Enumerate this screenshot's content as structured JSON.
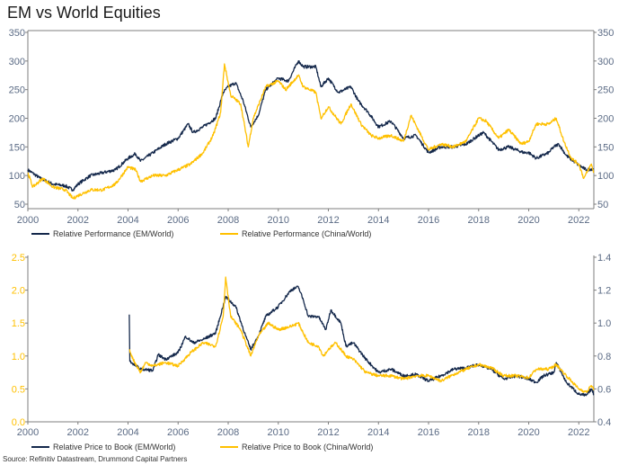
{
  "title": "EM vs World Equities",
  "source": "Source: Refinitiv Datastream, Drummond Capital Partners",
  "colors": {
    "em": "#14284b",
    "china": "#ffc000",
    "axis_text": "#5b6b85",
    "axis_line": "#7f7f7f"
  },
  "chart_data": [
    {
      "type": "line",
      "x_ticks": [
        "2000",
        "2002",
        "2004",
        "2006",
        "2008",
        "2010",
        "2012",
        "2014",
        "2016",
        "2018",
        "2020",
        "2022"
      ],
      "xlim": [
        2000,
        2022.6
      ],
      "ylim": [
        50,
        350
      ],
      "y_ticks_left": [
        "50",
        "100",
        "150",
        "200",
        "250",
        "300",
        "350"
      ],
      "y_ticks_right": [
        "50",
        "100",
        "150",
        "200",
        "250",
        "300",
        "350"
      ],
      "grid": false,
      "legend_placement": "bottom",
      "series": [
        {
          "name": "Relative Performance (EM/World)",
          "axis": "left",
          "x": [
            2000,
            2000.5,
            2001,
            2001.5,
            2001.8,
            2002,
            2002.5,
            2003,
            2003.5,
            2004,
            2004.3,
            2004.5,
            2005,
            2005.5,
            2006,
            2006.4,
            2006.6,
            2007,
            2007.5,
            2007.8,
            2008,
            2008.3,
            2008.6,
            2008.9,
            2009.2,
            2009.5,
            2010,
            2010.4,
            2010.8,
            2011,
            2011.5,
            2011.7,
            2012,
            2012.4,
            2012.9,
            2013.2,
            2013.6,
            2014,
            2014.5,
            2015,
            2015.5,
            2016,
            2016.5,
            2017,
            2017.5,
            2018,
            2018.2,
            2018.8,
            2019.2,
            2019.8,
            2020,
            2020.3,
            2020.8,
            2021,
            2021.2,
            2021.5,
            2022,
            2022.3,
            2022.6
          ],
          "y": [
            110,
            95,
            85,
            82,
            75,
            85,
            100,
            105,
            110,
            130,
            138,
            125,
            140,
            155,
            165,
            190,
            175,
            185,
            200,
            245,
            255,
            262,
            230,
            185,
            205,
            250,
            270,
            265,
            300,
            290,
            290,
            255,
            270,
            245,
            255,
            230,
            210,
            185,
            195,
            165,
            170,
            140,
            150,
            150,
            155,
            170,
            175,
            145,
            150,
            140,
            140,
            130,
            140,
            150,
            155,
            135,
            118,
            110,
            112
          ]
        },
        {
          "name": "Relative Performance (China/World)",
          "axis": "left",
          "x": [
            2000,
            2000.2,
            2000.6,
            2001,
            2001.5,
            2001.8,
            2002,
            2002.5,
            2003,
            2003.5,
            2004,
            2004.3,
            2004.5,
            2005,
            2005.5,
            2006,
            2006.5,
            2007,
            2007.4,
            2007.7,
            2007.85,
            2008.1,
            2008.5,
            2008.8,
            2009,
            2009.5,
            2010,
            2010.3,
            2010.8,
            2011,
            2011.5,
            2011.7,
            2012,
            2012.5,
            2012.9,
            2013.3,
            2013.7,
            2014,
            2014.5,
            2015,
            2015.3,
            2015.7,
            2016,
            2016.5,
            2017,
            2017.5,
            2018,
            2018.3,
            2018.8,
            2019.2,
            2019.7,
            2020,
            2020.3,
            2020.8,
            2021.1,
            2021.4,
            2021.7,
            2022,
            2022.2,
            2022.5,
            2022.6
          ],
          "y": [
            105,
            80,
            95,
            80,
            75,
            60,
            65,
            75,
            75,
            85,
            115,
            110,
            90,
            100,
            100,
            110,
            120,
            140,
            170,
            210,
            295,
            240,
            225,
            150,
            200,
            255,
            265,
            250,
            275,
            255,
            245,
            200,
            220,
            190,
            225,
            190,
            170,
            165,
            170,
            160,
            205,
            170,
            145,
            155,
            150,
            160,
            200,
            195,
            165,
            180,
            155,
            160,
            190,
            190,
            200,
            160,
            130,
            120,
            95,
            120,
            105
          ]
        }
      ]
    },
    {
      "type": "line",
      "x_ticks": [
        "2000",
        "2002",
        "2004",
        "2006",
        "2008",
        "2010",
        "2012",
        "2014",
        "2016",
        "2018",
        "2020",
        "2022"
      ],
      "xlim": [
        2000,
        2022.6
      ],
      "ylim_left": [
        0,
        2.5
      ],
      "ylim_right": [
        0.4,
        1.4
      ],
      "y_ticks_left": [
        "0.0",
        "0.5",
        "1.0",
        "1.5",
        "2.0",
        "2.5"
      ],
      "y_ticks_right": [
        "0.4",
        "0.6",
        "0.8",
        "1.0",
        "1.2",
        "1.4"
      ],
      "grid": false,
      "legend_placement": "bottom",
      "series": [
        {
          "name": "Relative Price to Book (EM/World)",
          "axis": "right",
          "x": [
            2004.05,
            2004.07,
            2004.5,
            2005,
            2005.2,
            2005.5,
            2006,
            2006.3,
            2006.6,
            2007,
            2007.5,
            2007.9,
            2008.3,
            2008.7,
            2008.9,
            2009.2,
            2009.5,
            2010,
            2010.5,
            2010.8,
            2011,
            2011.2,
            2011.6,
            2011.9,
            2012.1,
            2012.5,
            2012.7,
            2013,
            2013.5,
            2014,
            2014.5,
            2015,
            2015.5,
            2016,
            2016.5,
            2017,
            2017.5,
            2018,
            2018.5,
            2019,
            2019.5,
            2020,
            2020.3,
            2020.6,
            2021,
            2021.1,
            2021.5,
            2022,
            2022.3,
            2022.5,
            2022.6
          ],
          "y": [
            1.052,
            0.768,
            0.72,
            0.712,
            0.808,
            0.78,
            0.82,
            0.92,
            0.88,
            0.9,
            0.94,
            1.16,
            1.1,
            0.92,
            0.84,
            0.92,
            1.04,
            1.1,
            1.2,
            1.22,
            1.14,
            1.04,
            1.04,
            0.96,
            1.08,
            1.0,
            0.86,
            0.88,
            0.78,
            0.7,
            0.72,
            0.68,
            0.688,
            0.648,
            0.68,
            0.72,
            0.728,
            0.748,
            0.72,
            0.66,
            0.68,
            0.66,
            0.64,
            0.68,
            0.7,
            0.76,
            0.64,
            0.568,
            0.56,
            0.6,
            0.568
          ]
        },
        {
          "name": "Relative Price to Book (China/World)",
          "axis": "left",
          "x": [
            2004.05,
            2004.2,
            2004.5,
            2004.7,
            2005,
            2005.5,
            2006,
            2006.5,
            2007,
            2007.5,
            2007.8,
            2007.9,
            2008.1,
            2008.5,
            2008.9,
            2009.2,
            2009.6,
            2010,
            2010.5,
            2010.8,
            2011.2,
            2011.6,
            2011.8,
            2012,
            2012.3,
            2012.7,
            2013,
            2013.5,
            2014,
            2014.5,
            2015,
            2015.5,
            2016,
            2016.5,
            2017,
            2017.5,
            2018,
            2018.5,
            2019,
            2019.5,
            2020,
            2020.3,
            2020.8,
            2021.1,
            2021.5,
            2022,
            2022.3,
            2022.5,
            2022.6
          ],
          "y": [
            1.1,
            0.95,
            0.75,
            0.9,
            0.85,
            0.9,
            0.85,
            1.05,
            1.2,
            1.15,
            1.6,
            2.2,
            1.6,
            1.4,
            1.0,
            1.3,
            1.5,
            1.4,
            1.45,
            1.5,
            1.2,
            1.15,
            1.0,
            1.1,
            1.2,
            1.0,
            0.95,
            0.75,
            0.7,
            0.7,
            0.65,
            0.7,
            0.7,
            0.62,
            0.72,
            0.8,
            0.87,
            0.82,
            0.7,
            0.7,
            0.67,
            0.8,
            0.8,
            0.87,
            0.7,
            0.5,
            0.45,
            0.55,
            0.5
          ]
        }
      ]
    }
  ]
}
